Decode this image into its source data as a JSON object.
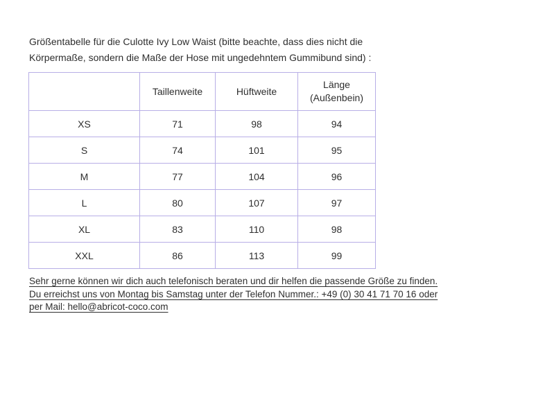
{
  "intro": {
    "text": "Größentabelle für die Culotte Ivy Low Waist  (bitte beachte, dass dies nicht die Körpermaße, sondern die Maße der Hose mit ungedehntem Gummibund sind) :"
  },
  "size_table": {
    "columns": [
      "",
      "Taillenweite",
      "Hüftweite",
      "Länge (Außenbein)"
    ],
    "rows": [
      {
        "size": "XS",
        "taillenweite": "71",
        "hueftweite": "98",
        "laenge": "94"
      },
      {
        "size": "S",
        "taillenweite": "74",
        "hueftweite": "101",
        "laenge": "95"
      },
      {
        "size": "M",
        "taillenweite": "77",
        "hueftweite": "104",
        "laenge": "96"
      },
      {
        "size": "L",
        "taillenweite": "80",
        "hueftweite": "107",
        "laenge": "97"
      },
      {
        "size": "XL",
        "taillenweite": "83",
        "hueftweite": "110",
        "laenge": "98"
      },
      {
        "size": "XXL",
        "taillenweite": "86",
        "hueftweite": "113",
        "laenge": "99"
      }
    ]
  },
  "contact": {
    "lines": [
      "Sehr gerne können wir dich auch telefonisch beraten und dir helfen die passende Größe zu finden.",
      "Du erreichst uns von Montag bis Samstag unter der Telefon Nummer.: +49 (0) 30 41 71 70 16 oder",
      "per Mail: hello@abricot-coco.com"
    ],
    "phone": "+49 (0) 30 41 71 70 16",
    "email": "hello@abricot-coco.com"
  },
  "colors": {
    "text": "#2e2e2e",
    "table_border": "#b7aee6",
    "size_cell_background": "#faf6fb"
  }
}
